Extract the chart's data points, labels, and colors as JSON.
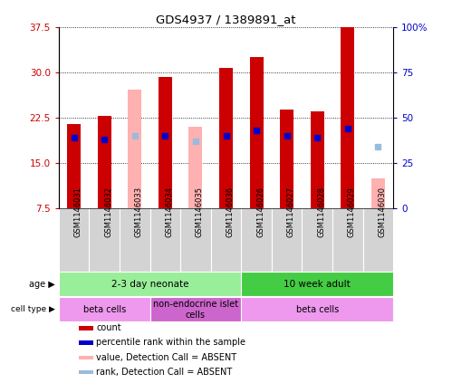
{
  "title": "GDS4937 / 1389891_at",
  "samples": [
    "GSM1146031",
    "GSM1146032",
    "GSM1146033",
    "GSM1146034",
    "GSM1146035",
    "GSM1146036",
    "GSM1146026",
    "GSM1146027",
    "GSM1146028",
    "GSM1146029",
    "GSM1146030"
  ],
  "absent": [
    false,
    false,
    true,
    false,
    true,
    false,
    false,
    false,
    false,
    false,
    true
  ],
  "count_values": [
    21.5,
    22.8,
    null,
    29.2,
    null,
    30.7,
    32.5,
    23.8,
    23.5,
    37.5,
    null
  ],
  "absent_values": [
    null,
    null,
    27.2,
    null,
    21.0,
    null,
    null,
    null,
    null,
    null,
    12.5
  ],
  "percentile_present": [
    39,
    38,
    null,
    40,
    null,
    40,
    43,
    40,
    39,
    44,
    null
  ],
  "percentile_absent": [
    null,
    null,
    40,
    null,
    37,
    null,
    null,
    null,
    null,
    null,
    34
  ],
  "ylim_left": [
    7.5,
    37.5
  ],
  "ylim_right": [
    0,
    100
  ],
  "yticks_left": [
    7.5,
    15.0,
    22.5,
    30.0,
    37.5
  ],
  "yticks_right": [
    0,
    25,
    50,
    75,
    100
  ],
  "bar_width": 0.45,
  "color_red": "#CC0000",
  "color_pink": "#FFB0B0",
  "color_blue": "#0000CC",
  "color_lightblue": "#99BBDD",
  "bg_color": "#FFFFFF",
  "left_label_color": "#CC0000",
  "right_label_color": "#0000CC",
  "age_groups": [
    {
      "label": "2-3 day neonate",
      "start": 0,
      "end": 6,
      "color": "#99EE99"
    },
    {
      "label": "10 week adult",
      "start": 6,
      "end": 11,
      "color": "#44CC44"
    }
  ],
  "cell_groups": [
    {
      "label": "beta cells",
      "start": 0,
      "end": 3,
      "color": "#EE99EE"
    },
    {
      "label": "non-endocrine islet\ncells",
      "start": 3,
      "end": 6,
      "color": "#CC66CC"
    },
    {
      "label": "beta cells",
      "start": 6,
      "end": 11,
      "color": "#EE99EE"
    }
  ]
}
